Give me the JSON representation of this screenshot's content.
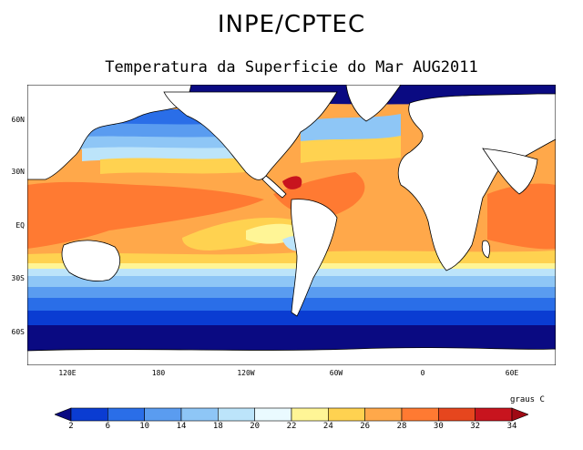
{
  "header": {
    "title": "INPE/CPTEC",
    "subtitle": "Temperatura da Superficie do Mar AUG2011"
  },
  "map": {
    "lat_labels": [
      "60N",
      "30N",
      "EQ",
      "30S",
      "60S"
    ],
    "lon_labels": [
      "120E",
      "180",
      "120W",
      "60W",
      "0",
      "60E"
    ],
    "colors": {
      "land": "#ffffff",
      "coast": "#000000"
    }
  },
  "legend": {
    "units": "graus C",
    "levels": [
      "2",
      "6",
      "10",
      "14",
      "18",
      "20",
      "22",
      "24",
      "26",
      "28",
      "30",
      "32",
      "34"
    ],
    "colors": [
      "#0a0a82",
      "#0a3cd2",
      "#2a6ee8",
      "#5a9cf0",
      "#8ec6f6",
      "#bce4fa",
      "#eafaff",
      "#fff596",
      "#ffd250",
      "#ffa84a",
      "#ff7a32",
      "#e6461e",
      "#c8141e",
      "#a00a14"
    ]
  }
}
